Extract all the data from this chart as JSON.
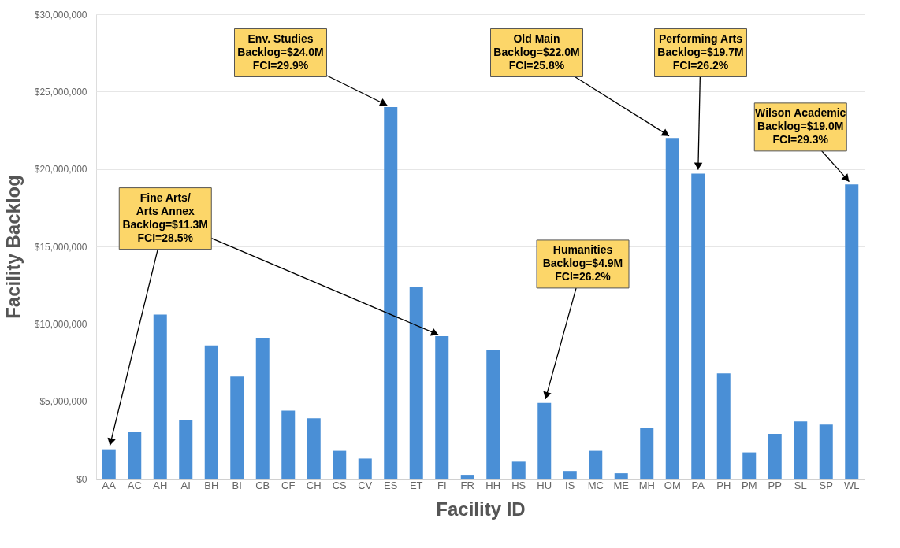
{
  "chart_data": {
    "type": "bar",
    "xlabel": "Facility ID",
    "ylabel": "Facility Backlog",
    "categories": [
      "AA",
      "AC",
      "AH",
      "AI",
      "BH",
      "BI",
      "CB",
      "CF",
      "CH",
      "CS",
      "CV",
      "ES",
      "ET",
      "FI",
      "FR",
      "HH",
      "HS",
      "HU",
      "IS",
      "MC",
      "ME",
      "MH",
      "OM",
      "PA",
      "PH",
      "PM",
      "PP",
      "SL",
      "SP",
      "WL"
    ],
    "values": [
      1900000,
      3000000,
      10600000,
      3800000,
      8600000,
      6600000,
      9100000,
      4400000,
      3900000,
      1800000,
      1300000,
      24000000,
      12400000,
      9200000,
      250000,
      8300000,
      1100000,
      4900000,
      500000,
      1800000,
      350000,
      3300000,
      22000000,
      19700000,
      6800000,
      1700000,
      2900000,
      3700000,
      3500000,
      19000000
    ],
    "color": "#4a8fd6",
    "ylim": [
      0,
      30000000
    ],
    "yticks": [
      {
        "value": 0,
        "label": "$0"
      },
      {
        "value": 5000000,
        "label": "$5,000,000"
      },
      {
        "value": 10000000,
        "label": "$10,000,000"
      },
      {
        "value": 15000000,
        "label": "$15,000,000"
      },
      {
        "value": 20000000,
        "label": "$20,000,000"
      },
      {
        "value": 25000000,
        "label": "$25,000,000"
      },
      {
        "value": 30000000,
        "label": "$30,000,000"
      }
    ],
    "grid": "y",
    "annotations": [
      {
        "text": "Env. Studies\nBacklog=$24.0M\nFCI=29.9%",
        "x": "ES",
        "y": 24000000
      },
      {
        "text": "Fine Arts/\nArts Annex\nBacklog=$11.3M\nFCI=28.5%",
        "x": "FI",
        "y": 9200000
      },
      {
        "text": "Old Main\nBacklog=$22.0M\nFCI=25.8%",
        "x": "OM",
        "y": 22000000
      },
      {
        "text": "Performing Arts\nBacklog=$19.7M\nFCI=26.2%",
        "x": "PA",
        "y": 19700000
      },
      {
        "text": "Wilson Academic\nBacklog=$19.0M\nFCI=29.3%",
        "x": "WL",
        "y": 19000000
      },
      {
        "text": "Humanities\nBacklog=$4.9M\nFCI=26.2%",
        "x": "HU",
        "y": 4900000
      }
    ]
  }
}
